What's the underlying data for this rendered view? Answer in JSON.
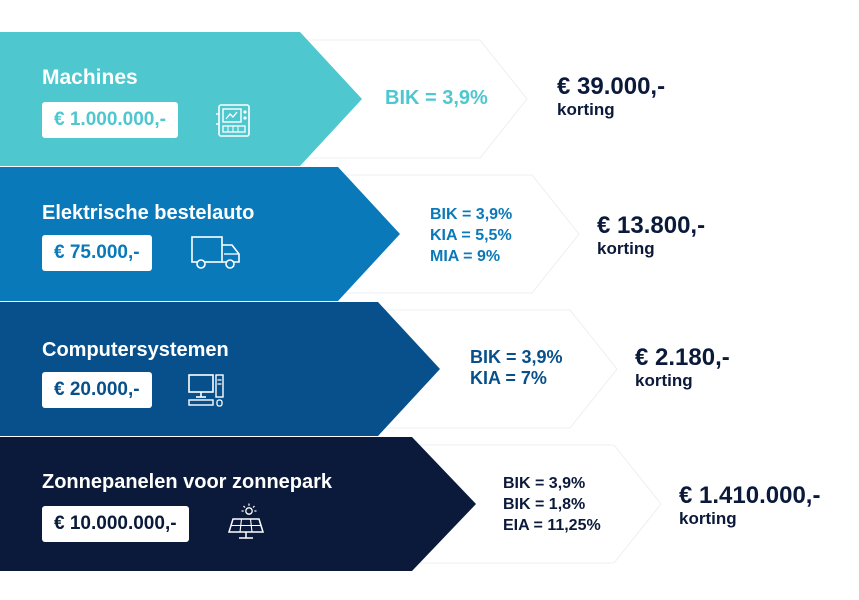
{
  "rows": [
    {
      "title": "Machines",
      "price": "€ 1.000.000,-",
      "icon": "machine-icon",
      "rates": [
        "BIK = 3,9%"
      ],
      "amount": "€ 39.000,-",
      "amount_label": "korting",
      "color": "#4ec7cf"
    },
    {
      "title": "Elektrische bestelauto",
      "price": "€ 75.000,-",
      "icon": "delivery-truck-icon",
      "rates": [
        "BIK = 3,9%",
        "KIA = 5,5%",
        "MIA = 9%"
      ],
      "amount": "€ 13.800,-",
      "amount_label": "korting",
      "color": "#0a79b9"
    },
    {
      "title": "Computersystemen",
      "price": "€ 20.000,-",
      "icon": "computer-icon",
      "rates": [
        "BIK = 3,9%",
        "KIA = 7%"
      ],
      "amount": "€ 2.180,-",
      "amount_label": "korting",
      "color": "#07508b"
    },
    {
      "title": "Zonnepanelen voor zonnepark",
      "price": "€ 10.000.000,-",
      "icon": "solar-panel-icon",
      "rates": [
        "BIK = 3,9%",
        "BIK = 1,8%",
        "EIA = 11,25%"
      ],
      "amount": "€ 1.410.000,-",
      "amount_label": "korting",
      "color": "#0b1a3a"
    }
  ]
}
